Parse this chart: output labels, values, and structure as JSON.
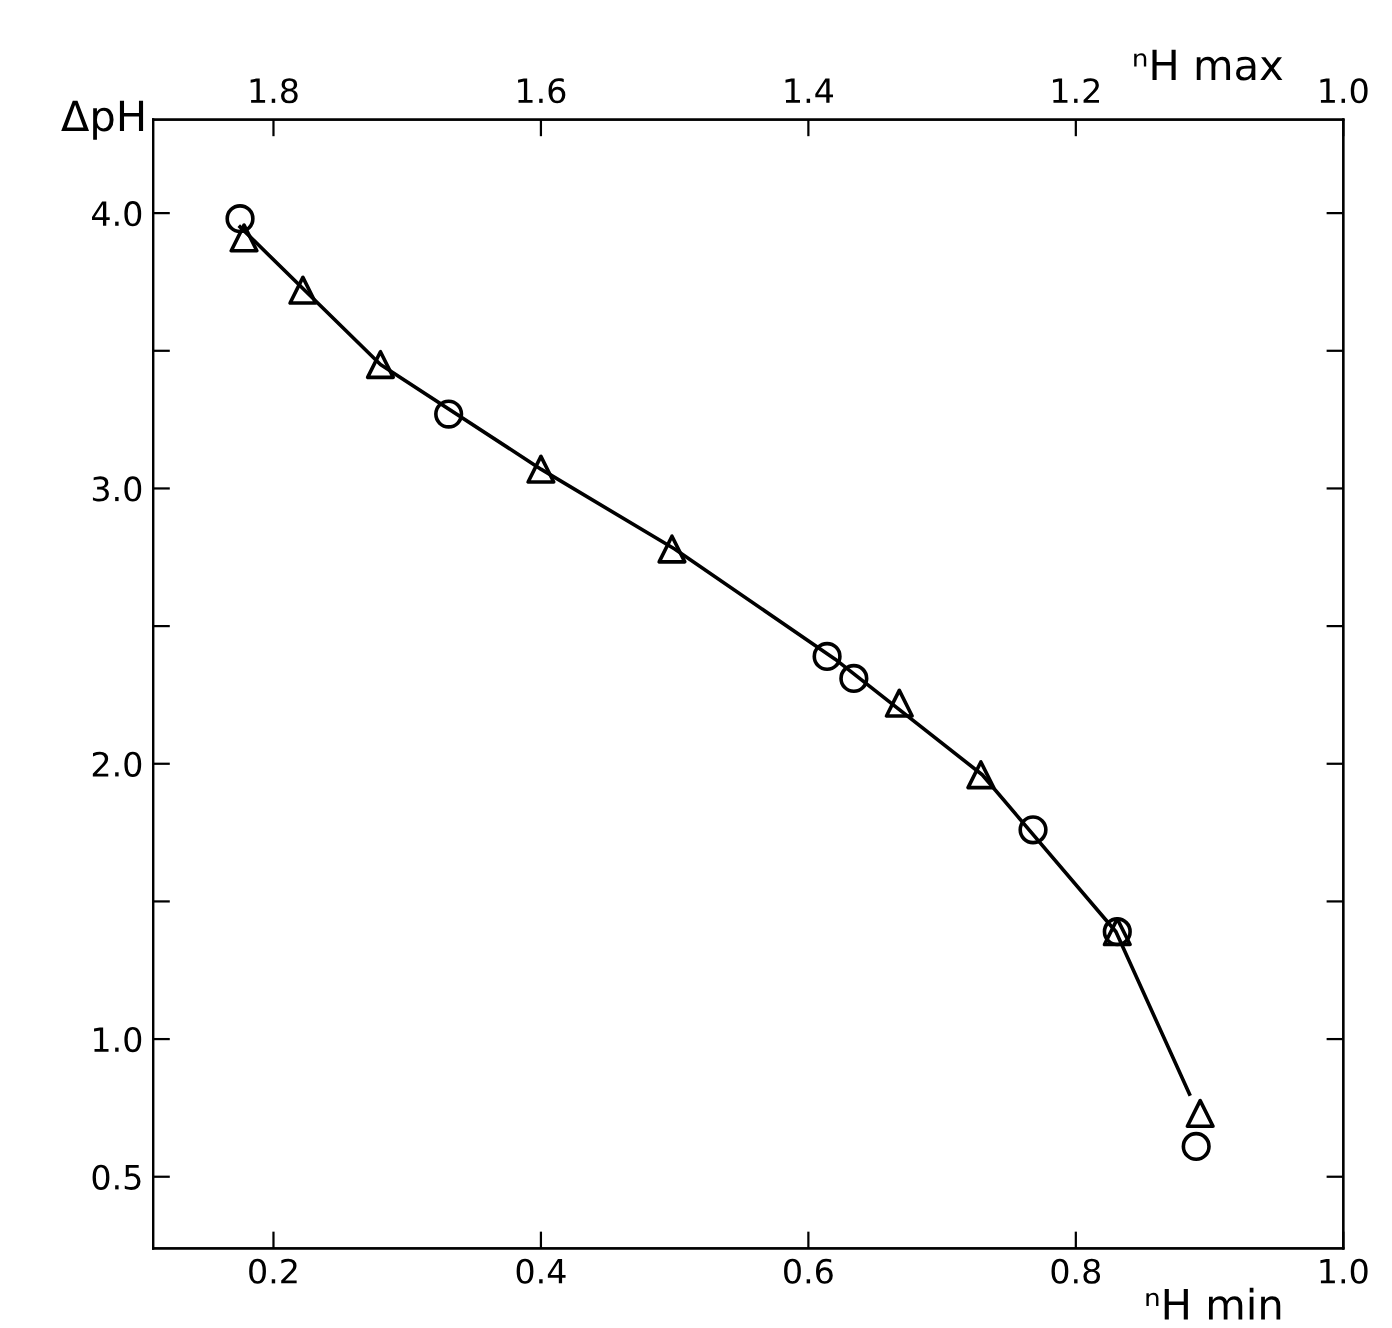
{
  "chart_data": {
    "type": "scatter",
    "ylabel": "ΔpH",
    "xlabel": "ⁿH min",
    "x2label": "ⁿH max",
    "xlim": [
      0.11,
      1.0
    ],
    "xticks": [
      0.2,
      0.4,
      0.6,
      0.8,
      {
        "value": 1.0,
        "label": "1.0"
      }
    ],
    "x2lim": [
      1.89,
      1.0
    ],
    "x2ticks": [
      1.8,
      1.6,
      1.4,
      1.2,
      {
        "value": 1.0,
        "label": "1.0"
      }
    ],
    "ylim": [
      0.24,
      4.34
    ],
    "yticks": [
      0.5,
      {
        "value": 1.0,
        "label": "1.0"
      },
      {
        "value": 1.5,
        "label": null
      },
      {
        "value": 2.0,
        "label": "2.0"
      },
      {
        "value": 2.5,
        "label": null
      },
      {
        "value": 3.0,
        "label": "3.0"
      },
      {
        "value": 3.5,
        "label": null
      },
      {
        "value": 4.0,
        "label": "4.0"
      }
    ],
    "grid": false,
    "legend": false,
    "series": [
      {
        "marker": "circle",
        "color": "#000000",
        "x": [
          0.175,
          0.331,
          0.614,
          0.634,
          0.768,
          0.831,
          0.89
        ],
        "values": [
          3.98,
          3.27,
          2.39,
          2.31,
          1.76,
          1.39,
          0.61
        ]
      },
      {
        "marker": "triangle",
        "color": "#000000",
        "x": [
          0.178,
          0.222,
          0.28,
          0.4,
          0.498,
          0.668,
          0.729,
          0.831,
          0.893
        ],
        "values": [
          3.91,
          3.72,
          3.45,
          3.07,
          2.78,
          2.22,
          1.96,
          1.39,
          0.73
        ]
      },
      {
        "type": "line",
        "marker": "none",
        "line_style": "solid",
        "color": "#000000",
        "x": [
          0.175,
          0.28,
          0.4,
          0.5,
          0.62,
          0.73,
          0.83,
          0.885
        ],
        "values": [
          3.95,
          3.45,
          3.07,
          2.78,
          2.38,
          1.96,
          1.39,
          0.8
        ]
      }
    ]
  }
}
